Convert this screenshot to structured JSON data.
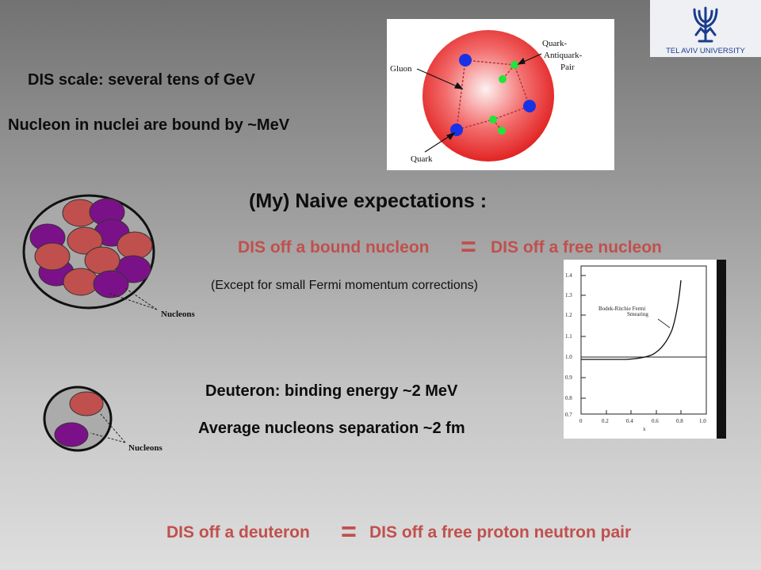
{
  "logo": {
    "text": "TEL AVIV UNIVERSITY"
  },
  "lines": {
    "dis_scale": "DIS scale:  several tens of GeV",
    "nucleon_bound": "Nucleon in nuclei are bound by ~MeV",
    "naive": "(My) Naive  expectations :",
    "exp_left": "DIS off a bound nucleon",
    "exp_right": "DIS off a free nucleon",
    "except": "(Except for small Fermi momentum corrections)",
    "deuteron_binding": "Deuteron: binding energy ~2 MeV",
    "separation": "Average nucleons separation ~2 fm",
    "bottom_left": "DIS off a deuteron",
    "bottom_right": "DIS off a free proton neutron pair",
    "equals": "="
  },
  "proton_figure": {
    "gluon": "Gluon",
    "qaq_1": "Quark-",
    "qaq_2": "Antiquark-",
    "qaq_3": "Pair",
    "quark": "Quark"
  },
  "nuclei": {
    "label_a": "Nucleons",
    "label_b": "Nucleons"
  },
  "smearing_plot": {
    "label_1": "Bodek-Ritchie Fermi",
    "label_2": "Smearing",
    "xlabel": "x",
    "x_ticks": [
      "0",
      "0.2",
      "0.4",
      "0.6",
      "0.8",
      "1.0"
    ],
    "y_ticks": [
      "1.4",
      "1.3",
      "1.2",
      "1.1",
      "1.0",
      "0.9",
      "0.8",
      "0.7"
    ]
  },
  "colors": {
    "accent_red": "#c0504d",
    "nucleon_red": "#c0504d",
    "nucleon_purple": "#7b1188",
    "logo_blue": "#1a3c8c"
  }
}
